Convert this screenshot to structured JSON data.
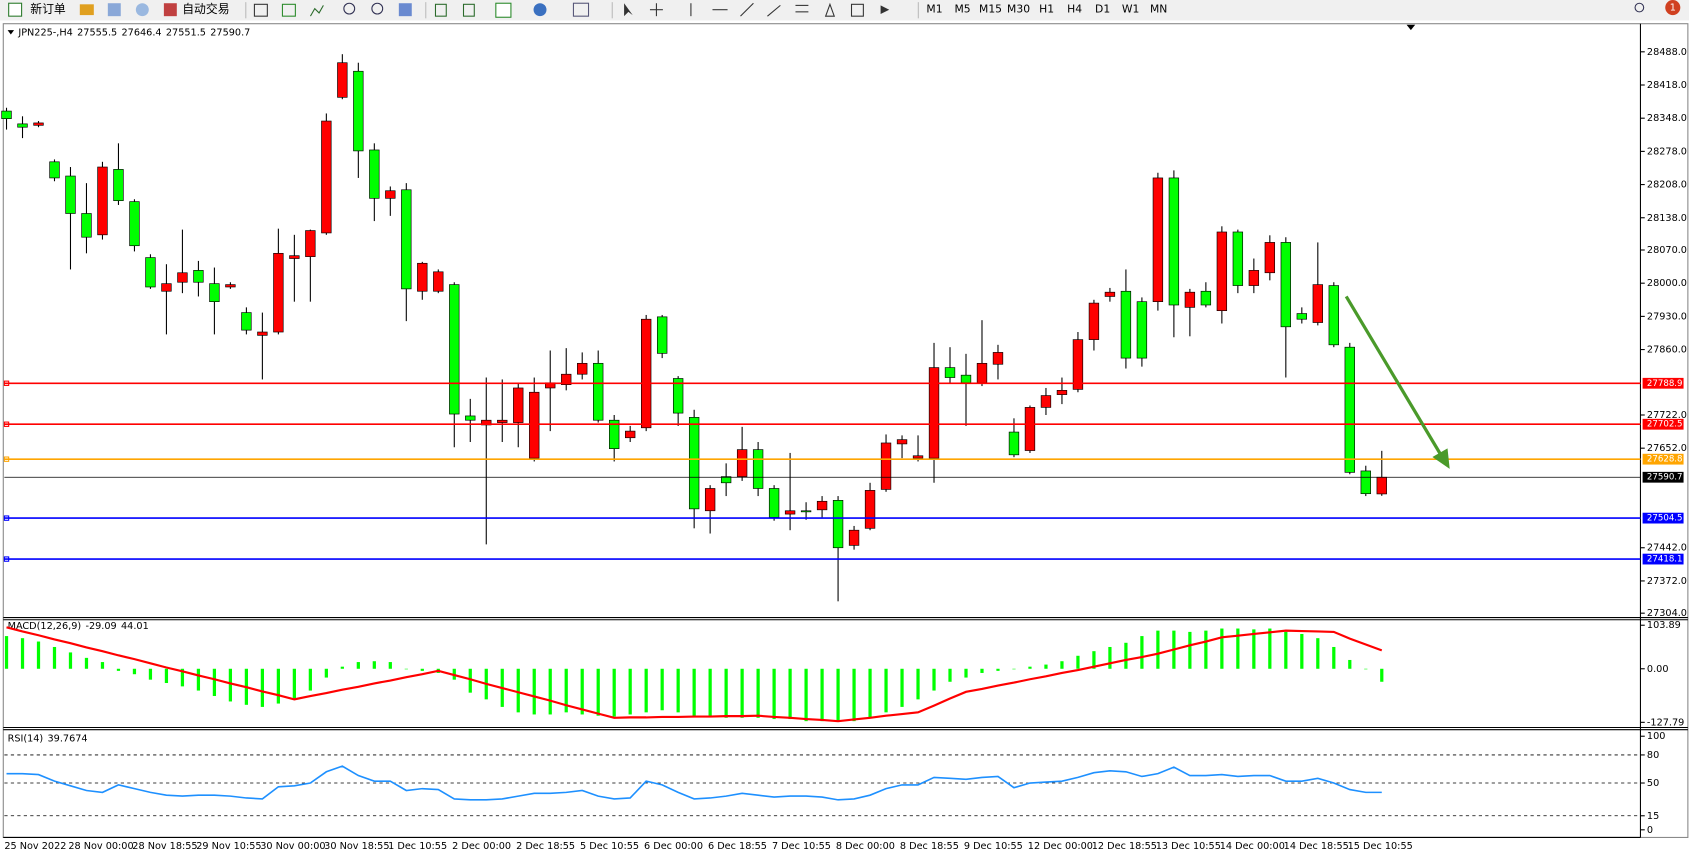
{
  "toolbar": {
    "new_order": "新订单",
    "auto_trading": "自动交易",
    "timeframes": [
      "M1",
      "M5",
      "M15",
      "M30",
      "H1",
      "H4",
      "D1",
      "W1",
      "MN"
    ],
    "notifications": 1
  },
  "chart_data": [
    {
      "type": "candlestick",
      "title": "JPN225-,H4",
      "categories": [
        "25 Nov 2022",
        null,
        null,
        null,
        "28 Nov 00:00",
        null,
        null,
        null,
        "28 Nov 18:55",
        null,
        null,
        null,
        "29 Nov 10:55",
        null,
        null,
        null,
        "30 Nov 00:00",
        null,
        null,
        null,
        "30 Nov 18:55",
        null,
        null,
        null,
        "1 Dec 10:55",
        null,
        null,
        null,
        "2 Dec 00:00",
        null,
        null,
        null,
        "2 Dec 18:55",
        null,
        null,
        null,
        "5 Dec 10:55",
        null,
        null,
        null,
        "6 Dec 00:00",
        null,
        null,
        null,
        "6 Dec 18:55",
        null,
        null,
        null,
        "7 Dec 10:55",
        null,
        null,
        null,
        "8 Dec 00:00",
        null,
        null,
        null,
        "8 Dec 18:55",
        null,
        null,
        null,
        "9 Dec 10:55",
        null,
        null,
        null,
        "12 Dec 00:00",
        null,
        null,
        null,
        "12 Dec 18:55",
        null,
        null,
        null,
        "13 Dec 10:55",
        null,
        null,
        null,
        "14 Dec 00:00",
        null,
        null,
        null,
        "14 Dec 18:55",
        null,
        null,
        null,
        "15 Dec 10:55",
        null,
        null
      ],
      "open": [
        28363,
        28336,
        28333,
        28256,
        28226,
        28147,
        28102,
        28240,
        28172,
        28054,
        27983,
        28002,
        28027,
        27999,
        27992,
        27938,
        27890,
        27897,
        28052,
        28056,
        28106,
        28392,
        28447,
        28281,
        28179,
        28197,
        27983,
        27983,
        27997,
        27720,
        27701,
        27706,
        27706,
        27631,
        27779,
        27786,
        27808,
        27831,
        27711,
        27674,
        27695,
        27929,
        27799,
        27717,
        27520,
        27592,
        27592,
        27649,
        27567,
        27513,
        27520,
        27522,
        27542,
        27447,
        27483,
        27565,
        27661,
        27631,
        27631,
        27822,
        27806,
        27790,
        27829,
        27686,
        27647,
        27738,
        27765,
        27776,
        27881,
        27972,
        27983,
        27961,
        27961,
        28222,
        27949,
        27983,
        27942,
        28108,
        27995,
        28022,
        28086,
        27936,
        27917,
        27995,
        27865,
        27604,
        27555.5
      ],
      "high": [
        28370,
        28352,
        28342,
        28261,
        28245,
        28211,
        28256,
        28295,
        28177,
        28061,
        28040,
        28113,
        28047,
        28033,
        28002,
        27949,
        27938,
        28115,
        28102,
        28113,
        28358,
        28483,
        28465,
        28295,
        28204,
        28211,
        28045,
        28029,
        28002,
        27756,
        27801,
        27797,
        27790,
        27801,
        27858,
        27863,
        27854,
        27858,
        27722,
        27699,
        27933,
        27933,
        27804,
        27733,
        27574,
        27620,
        27697,
        27665,
        27574,
        27642,
        27538,
        27551,
        27551,
        27488,
        27579,
        27681,
        27679,
        27679,
        27874,
        27865,
        27851,
        27922,
        27870,
        27715,
        27742,
        27779,
        27801,
        27897,
        27965,
        27990,
        28029,
        27970,
        28233,
        28238,
        27988,
        28002,
        28120,
        28113,
        28052,
        28101,
        28097,
        27949,
        28086,
        28002,
        27874,
        27615,
        27646.4
      ],
      "low": [
        28324,
        28306,
        28329,
        28215,
        28029,
        28063,
        28092,
        28165,
        28067,
        27988,
        27892,
        27979,
        27972,
        27892,
        27988,
        27892,
        27797,
        27892,
        27961,
        27961,
        28102,
        28388,
        28222,
        28131,
        28142,
        27920,
        27965,
        27979,
        27654,
        27665,
        27449,
        27665,
        27654,
        27624,
        27688,
        27774,
        27797,
        27706,
        27624,
        27665,
        27688,
        27842,
        27699,
        27483,
        27472,
        27551,
        27583,
        27551,
        27499,
        27479,
        27501,
        27506,
        27329,
        27438,
        27479,
        27560,
        27631,
        27624,
        27579,
        27790,
        27699,
        27783,
        27797,
        27633,
        27642,
        27722,
        27745,
        27770,
        27858,
        27961,
        27820,
        27824,
        27942,
        27886,
        27888,
        27949,
        27915,
        27979,
        27979,
        28006,
        27801,
        27915,
        27911,
        27865,
        27597,
        27551,
        27551.5
      ],
      "close": [
        28347,
        28329,
        28338,
        28222,
        28147,
        28097,
        28245,
        28174,
        28079,
        27992,
        27999,
        28022,
        28002,
        27961,
        27997,
        27901,
        27897,
        28063,
        28058,
        28111,
        28342,
        28465,
        28279,
        28179,
        28195,
        27988,
        28042,
        28024,
        27724,
        27711,
        27711,
        27711,
        27779,
        27770,
        27790,
        27808,
        27831,
        27711,
        27651,
        27688,
        27924,
        27852,
        27726,
        27524,
        27567,
        27579,
        27649,
        27567,
        27506,
        27520,
        27518,
        27540,
        27442,
        27479,
        27563,
        27663,
        27670,
        27636,
        27822,
        27801,
        27790,
        27831,
        27854,
        27638,
        27738,
        27763,
        27774,
        27881,
        27958,
        27981,
        27842,
        27842,
        28222,
        27954,
        27981,
        27954,
        28108,
        27995,
        28027,
        28086,
        27908,
        27924,
        27997,
        27870,
        27601,
        27556,
        27590.7
      ],
      "up_color": "#ff0000",
      "down_color": "#00ff00",
      "ylim": [
        27297,
        28545
      ],
      "yticks": [
        {
          "value": 28488,
          "label": "28488.0"
        },
        {
          "value": 28418,
          "label": "28418.0"
        },
        {
          "value": 28348,
          "label": "28348.0"
        },
        {
          "value": 28278,
          "label": "28278.0"
        },
        {
          "value": 28208,
          "label": "28208.0"
        },
        {
          "value": 28138,
          "label": "28138.0"
        },
        {
          "value": 28070,
          "label": "28070.0"
        },
        {
          "value": 28000,
          "label": "28000.0"
        },
        {
          "value": 27930,
          "label": "27930.0"
        },
        {
          "value": 27860,
          "label": "27860.0"
        },
        {
          "value": 27722,
          "label": "27722.0"
        },
        {
          "value": 27652,
          "label": "27652.0"
        },
        {
          "value": 27442,
          "label": "27442.0"
        },
        {
          "value": 27372,
          "label": "27372.0"
        },
        {
          "value": 27304,
          "label": "27304.0"
        }
      ],
      "hlines": [
        {
          "value": 27788.9,
          "color": "#ff0000"
        },
        {
          "value": 27702.5,
          "color": "#ff0000"
        },
        {
          "value": 27628.8,
          "color": "#ffa500"
        },
        {
          "value": 27504.5,
          "color": "#0000ff"
        },
        {
          "value": 27418.1,
          "color": "#0000ff"
        }
      ]
    },
    {
      "type": "macd",
      "title": "MACD(12,26,9)",
      "readout": [
        -29.09,
        44.01
      ],
      "values": [
        78,
        73,
        65,
        52,
        39,
        26,
        16,
        -5,
        -13,
        -26,
        -34,
        -42,
        -52,
        -65,
        -78,
        -86,
        -91,
        -83,
        -73,
        -52,
        -21,
        5,
        16,
        18,
        16,
        0,
        -5,
        -10,
        -26,
        -57,
        -73,
        -91,
        -104,
        -109,
        -109,
        -104,
        -109,
        -112,
        -114,
        -109,
        -104,
        -99,
        -104,
        -114,
        -114,
        -117,
        -117,
        -117,
        -120,
        -120,
        -125,
        -125,
        -125,
        -125,
        -117,
        -104,
        -91,
        -73,
        -52,
        -31,
        -21,
        -10,
        -5,
        0,
        5,
        10,
        18,
        31,
        42,
        52,
        62,
        78,
        91,
        91,
        88,
        91,
        96,
        96,
        94,
        96,
        88,
        83,
        73,
        52,
        21,
        0,
        -31
      ],
      "signal": [
        99,
        89,
        80,
        70,
        61,
        51,
        42,
        32,
        23,
        13,
        3,
        -6,
        -16,
        -25,
        -35,
        -44,
        -54,
        -63,
        -73,
        -65,
        -58,
        -50,
        -43,
        -35,
        -28,
        -20,
        -13,
        -5,
        -15,
        -25,
        -36,
        -46,
        -56,
        -66,
        -76,
        -87,
        -97,
        -107,
        -117,
        -116,
        -116,
        -115,
        -115,
        -114,
        -114,
        -113,
        -113,
        -112,
        -115,
        -117,
        -120,
        -122,
        -125,
        -121,
        -117,
        -112,
        -108,
        -104,
        -88,
        -71,
        -55,
        -48,
        -40,
        -33,
        -25,
        -18,
        -10,
        -3,
        5,
        13,
        21,
        28,
        36,
        46,
        56,
        65,
        75,
        79,
        83,
        87,
        91,
        90,
        89,
        88,
        72,
        58,
        44
      ],
      "color": "#00ff00",
      "signal_color": "#ff0000",
      "ylim": [
        -135,
        117
      ],
      "yticks": [
        103.89,
        {
          "value": 0,
          "label": "0.00"
        },
        -127.79
      ]
    },
    {
      "type": "line",
      "title": "RSI(14)",
      "readout": 39.7674,
      "values": [
        60,
        60,
        59,
        52,
        47,
        42,
        40,
        48,
        44,
        40,
        37,
        36,
        37,
        37,
        36,
        34,
        33,
        46,
        47,
        50,
        62,
        68,
        58,
        52,
        52,
        42,
        44,
        43,
        33,
        32,
        32,
        33,
        36,
        39,
        39,
        40,
        42,
        36,
        33,
        34,
        52,
        48,
        40,
        33,
        34,
        36,
        39,
        37,
        35,
        36,
        36,
        35,
        32,
        33,
        37,
        44,
        48,
        48,
        56,
        55,
        54,
        56,
        57,
        45,
        50,
        51,
        52,
        56,
        61,
        63,
        62,
        57,
        60,
        67,
        58,
        58,
        59,
        57,
        58,
        58,
        52,
        52,
        55,
        50,
        43,
        40,
        40
      ],
      "color": "#1e90ff",
      "ylim": [
        -7,
        107
      ],
      "yticks": [
        100,
        80,
        50,
        15,
        0
      ],
      "levels": [
        80,
        50,
        15
      ]
    }
  ]
}
